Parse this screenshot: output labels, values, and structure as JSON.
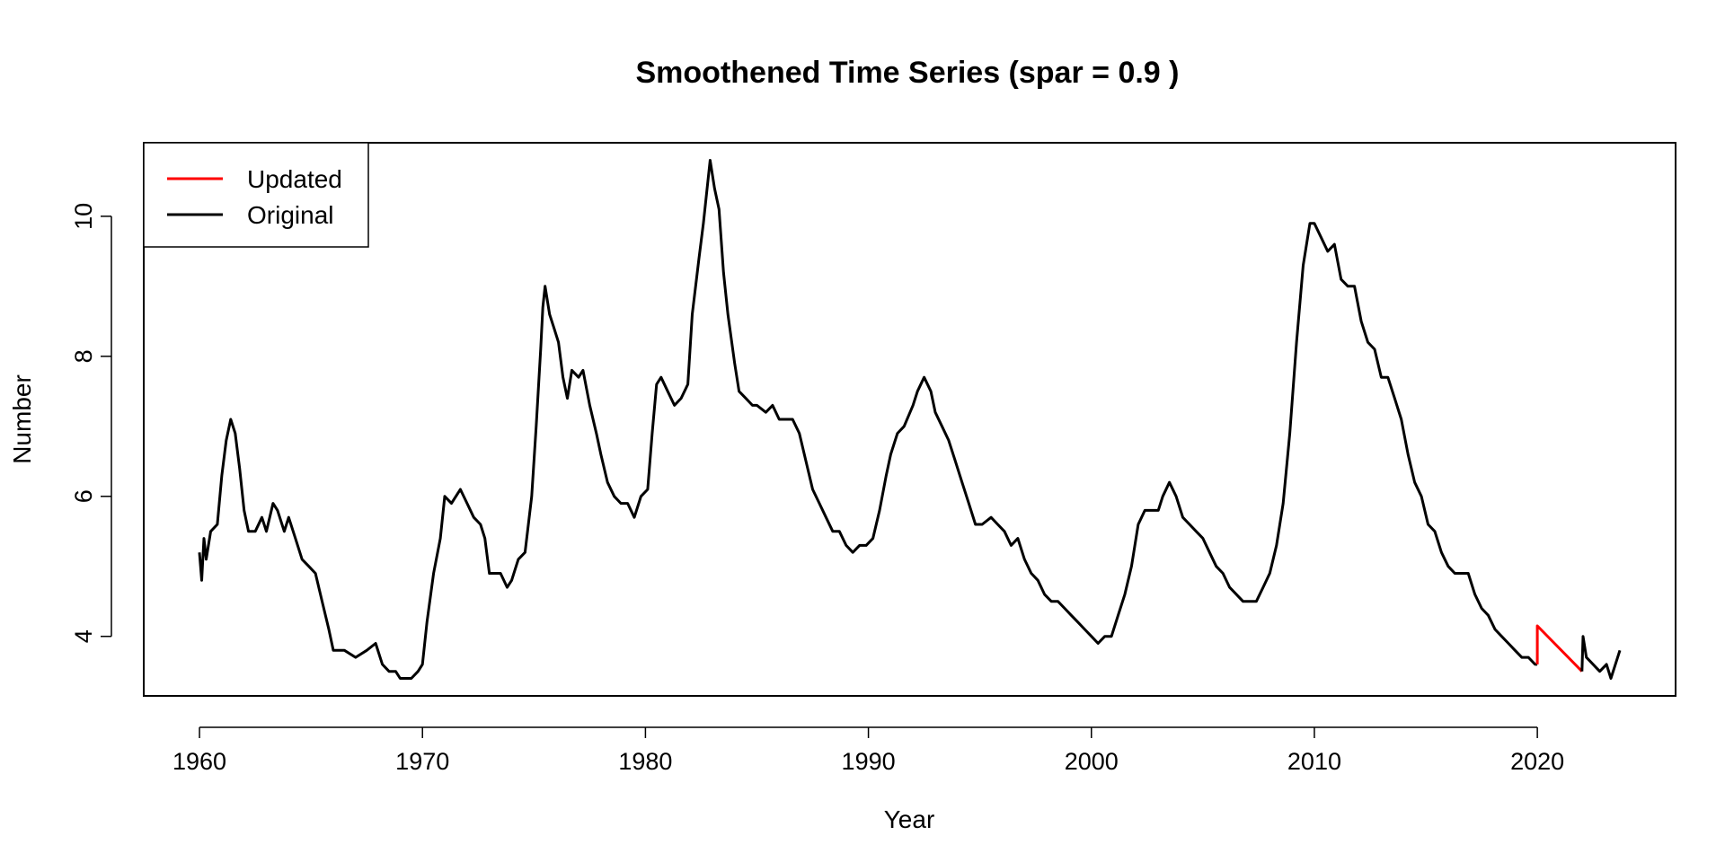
{
  "chart_data": {
    "type": "line",
    "title": "Smoothened Time Series (spar = 0.9 )",
    "xlabel": "Year",
    "ylabel": "Number",
    "xlim": [
      1957.5,
      2026.2
    ],
    "ylim": [
      3.15,
      11.05
    ],
    "x_ticks": [
      1960,
      1970,
      1980,
      1990,
      2000,
      2010,
      2020
    ],
    "x_tick_labels": [
      "1960",
      "1970",
      "1980",
      "1990",
      "2000",
      "2010",
      "2020"
    ],
    "y_ticks": [
      4,
      6,
      8,
      10
    ],
    "y_tick_labels": [
      "4",
      "6",
      "8",
      "10"
    ],
    "grid": false,
    "legend": {
      "position": "top-left",
      "entries": [
        {
          "label": "Updated",
          "color": "#ff0000"
        },
        {
          "label": "Original",
          "color": "#000000"
        }
      ]
    },
    "series": [
      {
        "name": "Original",
        "color": "#000000",
        "points": [
          [
            1960.0,
            5.2
          ],
          [
            1960.1,
            4.8
          ],
          [
            1960.2,
            5.4
          ],
          [
            1960.3,
            5.1
          ],
          [
            1960.5,
            5.5
          ],
          [
            1960.8,
            5.6
          ],
          [
            1961.0,
            6.3
          ],
          [
            1961.2,
            6.8
          ],
          [
            1961.4,
            7.1
          ],
          [
            1961.6,
            6.9
          ],
          [
            1961.8,
            6.4
          ],
          [
            1962.0,
            5.8
          ],
          [
            1962.2,
            5.5
          ],
          [
            1962.5,
            5.5
          ],
          [
            1962.8,
            5.7
          ],
          [
            1963.0,
            5.5
          ],
          [
            1963.3,
            5.9
          ],
          [
            1963.5,
            5.8
          ],
          [
            1963.8,
            5.5
          ],
          [
            1964.0,
            5.7
          ],
          [
            1964.3,
            5.4
          ],
          [
            1964.6,
            5.1
          ],
          [
            1964.9,
            5.0
          ],
          [
            1965.2,
            4.9
          ],
          [
            1965.5,
            4.5
          ],
          [
            1965.8,
            4.1
          ],
          [
            1966.0,
            3.8
          ],
          [
            1966.5,
            3.8
          ],
          [
            1967.0,
            3.7
          ],
          [
            1967.5,
            3.8
          ],
          [
            1967.9,
            3.9
          ],
          [
            1968.2,
            3.6
          ],
          [
            1968.5,
            3.5
          ],
          [
            1968.8,
            3.5
          ],
          [
            1969.0,
            3.4
          ],
          [
            1969.5,
            3.4
          ],
          [
            1969.8,
            3.5
          ],
          [
            1970.0,
            3.6
          ],
          [
            1970.2,
            4.2
          ],
          [
            1970.5,
            4.9
          ],
          [
            1970.8,
            5.4
          ],
          [
            1971.0,
            6.0
          ],
          [
            1971.3,
            5.9
          ],
          [
            1971.7,
            6.1
          ],
          [
            1972.0,
            5.9
          ],
          [
            1972.3,
            5.7
          ],
          [
            1972.6,
            5.6
          ],
          [
            1972.8,
            5.4
          ],
          [
            1973.0,
            4.9
          ],
          [
            1973.5,
            4.9
          ],
          [
            1973.8,
            4.7
          ],
          [
            1974.0,
            4.8
          ],
          [
            1974.3,
            5.1
          ],
          [
            1974.6,
            5.2
          ],
          [
            1974.9,
            6.0
          ],
          [
            1975.1,
            7.0
          ],
          [
            1975.3,
            8.1
          ],
          [
            1975.4,
            8.7
          ],
          [
            1975.5,
            9.0
          ],
          [
            1975.7,
            8.6
          ],
          [
            1975.9,
            8.4
          ],
          [
            1976.1,
            8.2
          ],
          [
            1976.3,
            7.7
          ],
          [
            1976.5,
            7.4
          ],
          [
            1976.7,
            7.8
          ],
          [
            1977.0,
            7.7
          ],
          [
            1977.2,
            7.8
          ],
          [
            1977.5,
            7.3
          ],
          [
            1977.8,
            6.9
          ],
          [
            1978.0,
            6.6
          ],
          [
            1978.3,
            6.2
          ],
          [
            1978.6,
            6.0
          ],
          [
            1978.9,
            5.9
          ],
          [
            1979.2,
            5.9
          ],
          [
            1979.5,
            5.7
          ],
          [
            1979.8,
            6.0
          ],
          [
            1980.1,
            6.1
          ],
          [
            1980.3,
            6.9
          ],
          [
            1980.5,
            7.6
          ],
          [
            1980.7,
            7.7
          ],
          [
            1981.0,
            7.5
          ],
          [
            1981.3,
            7.3
          ],
          [
            1981.6,
            7.4
          ],
          [
            1981.9,
            7.6
          ],
          [
            1982.1,
            8.6
          ],
          [
            1982.4,
            9.4
          ],
          [
            1982.6,
            9.9
          ],
          [
            1982.9,
            10.8
          ],
          [
            1983.1,
            10.4
          ],
          [
            1983.3,
            10.1
          ],
          [
            1983.5,
            9.2
          ],
          [
            1983.7,
            8.6
          ],
          [
            1984.0,
            7.9
          ],
          [
            1984.2,
            7.5
          ],
          [
            1984.5,
            7.4
          ],
          [
            1984.8,
            7.3
          ],
          [
            1985.0,
            7.3
          ],
          [
            1985.4,
            7.2
          ],
          [
            1985.7,
            7.3
          ],
          [
            1986.0,
            7.1
          ],
          [
            1986.3,
            7.1
          ],
          [
            1986.6,
            7.1
          ],
          [
            1986.9,
            6.9
          ],
          [
            1987.2,
            6.5
          ],
          [
            1987.5,
            6.1
          ],
          [
            1987.8,
            5.9
          ],
          [
            1988.1,
            5.7
          ],
          [
            1988.4,
            5.5
          ],
          [
            1988.7,
            5.5
          ],
          [
            1989.0,
            5.3
          ],
          [
            1989.3,
            5.2
          ],
          [
            1989.6,
            5.3
          ],
          [
            1989.9,
            5.3
          ],
          [
            1990.2,
            5.4
          ],
          [
            1990.5,
            5.8
          ],
          [
            1990.8,
            6.3
          ],
          [
            1991.0,
            6.6
          ],
          [
            1991.3,
            6.9
          ],
          [
            1991.6,
            7.0
          ],
          [
            1992.0,
            7.3
          ],
          [
            1992.2,
            7.5
          ],
          [
            1992.5,
            7.7
          ],
          [
            1992.8,
            7.5
          ],
          [
            1993.0,
            7.2
          ],
          [
            1993.3,
            7.0
          ],
          [
            1993.6,
            6.8
          ],
          [
            1993.9,
            6.5
          ],
          [
            1994.2,
            6.2
          ],
          [
            1994.5,
            5.9
          ],
          [
            1994.8,
            5.6
          ],
          [
            1995.1,
            5.6
          ],
          [
            1995.5,
            5.7
          ],
          [
            1995.8,
            5.6
          ],
          [
            1996.1,
            5.5
          ],
          [
            1996.4,
            5.3
          ],
          [
            1996.7,
            5.4
          ],
          [
            1997.0,
            5.1
          ],
          [
            1997.3,
            4.9
          ],
          [
            1997.6,
            4.8
          ],
          [
            1997.9,
            4.6
          ],
          [
            1998.2,
            4.5
          ],
          [
            1998.5,
            4.5
          ],
          [
            1998.8,
            4.4
          ],
          [
            1999.1,
            4.3
          ],
          [
            1999.4,
            4.2
          ],
          [
            1999.7,
            4.1
          ],
          [
            2000.0,
            4.0
          ],
          [
            2000.3,
            3.9
          ],
          [
            2000.6,
            4.0
          ],
          [
            2000.9,
            4.0
          ],
          [
            2001.2,
            4.3
          ],
          [
            2001.5,
            4.6
          ],
          [
            2001.8,
            5.0
          ],
          [
            2002.1,
            5.6
          ],
          [
            2002.4,
            5.8
          ],
          [
            2002.7,
            5.8
          ],
          [
            2003.0,
            5.8
          ],
          [
            2003.2,
            6.0
          ],
          [
            2003.5,
            6.2
          ],
          [
            2003.8,
            6.0
          ],
          [
            2004.1,
            5.7
          ],
          [
            2004.4,
            5.6
          ],
          [
            2004.7,
            5.5
          ],
          [
            2005.0,
            5.4
          ],
          [
            2005.3,
            5.2
          ],
          [
            2005.6,
            5.0
          ],
          [
            2005.9,
            4.9
          ],
          [
            2006.2,
            4.7
          ],
          [
            2006.5,
            4.6
          ],
          [
            2006.8,
            4.5
          ],
          [
            2007.1,
            4.5
          ],
          [
            2007.4,
            4.5
          ],
          [
            2007.7,
            4.7
          ],
          [
            2008.0,
            4.9
          ],
          [
            2008.3,
            5.3
          ],
          [
            2008.6,
            5.9
          ],
          [
            2008.9,
            6.9
          ],
          [
            2009.2,
            8.2
          ],
          [
            2009.5,
            9.3
          ],
          [
            2009.8,
            9.9
          ],
          [
            2010.0,
            9.9
          ],
          [
            2010.3,
            9.7
          ],
          [
            2010.6,
            9.5
          ],
          [
            2010.9,
            9.6
          ],
          [
            2011.2,
            9.1
          ],
          [
            2011.5,
            9.0
          ],
          [
            2011.8,
            9.0
          ],
          [
            2012.1,
            8.5
          ],
          [
            2012.4,
            8.2
          ],
          [
            2012.7,
            8.1
          ],
          [
            2013.0,
            7.7
          ],
          [
            2013.3,
            7.7
          ],
          [
            2013.6,
            7.4
          ],
          [
            2013.9,
            7.1
          ],
          [
            2014.2,
            6.6
          ],
          [
            2014.5,
            6.2
          ],
          [
            2014.8,
            6.0
          ],
          [
            2015.1,
            5.6
          ],
          [
            2015.4,
            5.5
          ],
          [
            2015.7,
            5.2
          ],
          [
            2016.0,
            5.0
          ],
          [
            2016.3,
            4.9
          ],
          [
            2016.6,
            4.9
          ],
          [
            2016.9,
            4.9
          ],
          [
            2017.2,
            4.6
          ],
          [
            2017.5,
            4.4
          ],
          [
            2017.8,
            4.3
          ],
          [
            2018.1,
            4.1
          ],
          [
            2018.4,
            4.0
          ],
          [
            2018.7,
            3.9
          ],
          [
            2019.0,
            3.8
          ],
          [
            2019.3,
            3.7
          ],
          [
            2019.6,
            3.7
          ],
          [
            2019.9,
            3.6
          ],
          [
            2020.0,
            3.6
          ]
        ]
      },
      {
        "name": "Updated",
        "color": "#ff0000",
        "points": [
          [
            2020.0,
            3.6
          ],
          [
            2020.0,
            4.15
          ],
          [
            2022.0,
            3.5
          ]
        ]
      },
      {
        "name": "Original",
        "color": "#000000",
        "points": [
          [
            2022.0,
            3.5
          ],
          [
            2022.05,
            4.0
          ],
          [
            2022.2,
            3.7
          ],
          [
            2022.5,
            3.6
          ],
          [
            2022.8,
            3.5
          ],
          [
            2023.1,
            3.6
          ],
          [
            2023.3,
            3.4
          ],
          [
            2023.5,
            3.6
          ],
          [
            2023.7,
            3.8
          ]
        ]
      }
    ]
  }
}
